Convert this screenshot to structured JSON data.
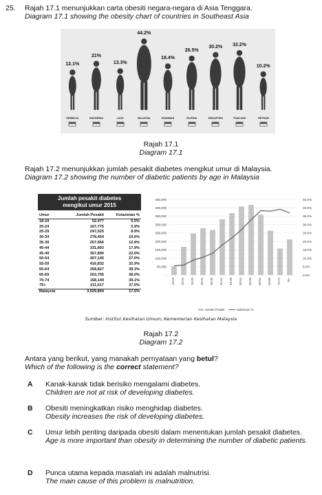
{
  "question": {
    "number": "25.",
    "intro_ms": "Rajah 17.1 menunjukkan carta obesiti negara-negara di Asia Tenggara.",
    "intro_en": "Diagram 17.1 showing the obesity chart of countries in Southeast Asia"
  },
  "diagram1": {
    "caption_ms": "Rajah 17.1",
    "caption_en": "Diagram 17.1",
    "chart_data": {
      "type": "bar",
      "categories": [
        "KEMBOJA",
        "INDONESIA",
        "LAOS",
        "MALAYSIA",
        "MYANMAR",
        "FILIPINA",
        "SINGAPURA",
        "THAILAND",
        "VIETNAM"
      ],
      "values": [
        12.1,
        21,
        13.3,
        44.2,
        18.4,
        26.5,
        30.2,
        32.2,
        10.2
      ],
      "labels": [
        "12.1%",
        "21%",
        "13.3%",
        "44.2%",
        "18.4%",
        "26.5%",
        "30.2%",
        "32.2%",
        "10.2%"
      ]
    }
  },
  "diagram2_intro": {
    "ms": "Rajah 17.2 menunjukkan jumlah pesakit diabetes mengikut umur di Malaysia.",
    "en": "Diagram 17.2 showing the number of diabetic patients by age in Malaysia"
  },
  "table": {
    "title_line1": "Jumlah pesakit diabetes",
    "title_line2": "mengikut umur 2015",
    "headers": [
      "Umur",
      "Jumlah Pesakit",
      "Kelaziman %"
    ],
    "rows": [
      [
        "18-19",
        "52,477",
        "5.5%"
      ],
      [
        "20-24",
        "167,775",
        "5.9%"
      ],
      [
        "25-29",
        "247,025",
        "8.9%"
      ],
      [
        "30-34",
        "278,454",
        "10.6%"
      ],
      [
        "35-39",
        "267,966",
        "12.9%"
      ],
      [
        "40-44",
        "331,893",
        "17.9%"
      ],
      [
        "45-49",
        "367,890",
        "22.0%"
      ],
      [
        "50-54",
        "407,145",
        "27.0%"
      ],
      [
        "55-59",
        "416,832",
        "32.9%"
      ],
      [
        "60-64",
        "358,827",
        "38.3%"
      ],
      [
        "65-69",
        "263,755",
        "38.0%"
      ],
      [
        "70-74",
        "158,149",
        "39.1%"
      ],
      [
        "75+",
        "211,617",
        "37.0%"
      ]
    ],
    "total": [
      "Malaysia",
      "3,529,804",
      "17.5%"
    ]
  },
  "chart_data": {
    "type": "bar",
    "categories": [
      "18-19",
      "20-24",
      "25-29",
      "30-34",
      "35-39",
      "40-44",
      "45-49",
      "50-54",
      "55-59",
      "60-64",
      "65-69",
      "70-74",
      "75+"
    ],
    "series": [
      {
        "name": "Jumlah Pesakit",
        "type": "bar",
        "values": [
          52477,
          167775,
          247025,
          278454,
          267966,
          331893,
          367890,
          407145,
          416832,
          358827,
          263755,
          158149,
          211617
        ]
      },
      {
        "name": "Kelaziman %",
        "type": "line",
        "values": [
          5.5,
          5.9,
          8.9,
          10.6,
          12.9,
          17.9,
          22.0,
          27.0,
          32.9,
          38.3,
          38.0,
          39.1,
          37.0
        ]
      }
    ],
    "y_left_ticks": [
      "450,000",
      "400,000",
      "350,000",
      "300,000",
      "250,000",
      "200,000",
      "150,000",
      "100,000",
      "50,000",
      "-"
    ],
    "y_right_ticks": [
      "45.0%",
      "40.0%",
      "35.0%",
      "30.0%",
      "25.0%",
      "20.0%",
      "15.0%",
      "10.0%",
      "5.0%",
      "0.0%"
    ],
    "ylim_left": [
      0,
      450000
    ],
    "ylim_right": [
      0,
      45
    ],
    "legend": [
      "Jumlah Pesakit",
      "Kelaziman %"
    ],
    "bar_color": "#c4c4c4",
    "line_color": "#666666"
  },
  "source": "Sumber: Institut Kesihatan Umum, Kementerian Kesihatan Malaysia",
  "diagram2": {
    "caption_ms": "Rajah 17.2",
    "caption_en": "Diagram 17.2"
  },
  "prompt": {
    "ms_before": "Antara yang berikut, yang manakah pernyataan yang ",
    "ms_bold": "betul",
    "ms_after": "?",
    "en_before": "Which of the following is the ",
    "en_bold": "correct",
    "en_after": " statement?"
  },
  "options": [
    {
      "letter": "A",
      "ms": "Kanak-kanak tidak berisiko mengalami diabetes.",
      "en": "Children are not at risk of developing diabetes."
    },
    {
      "letter": "B",
      "ms": "Obesiti meningkatkan risiko menghidap diabetes.",
      "en": "Obesity increases the risk of developing diabetes."
    },
    {
      "letter": "C",
      "ms": "Umur lebih penting daripada obesiti dalam menentukan jumlah pesakit diabetes.",
      "en": "Age is more important than obesity in determining the number of diabetic patients."
    },
    {
      "letter": "D",
      "ms": "Punca utama kepada masalah ini adalah malnutrisi.",
      "en": "The main cause of this problem is malnutrition."
    }
  ]
}
